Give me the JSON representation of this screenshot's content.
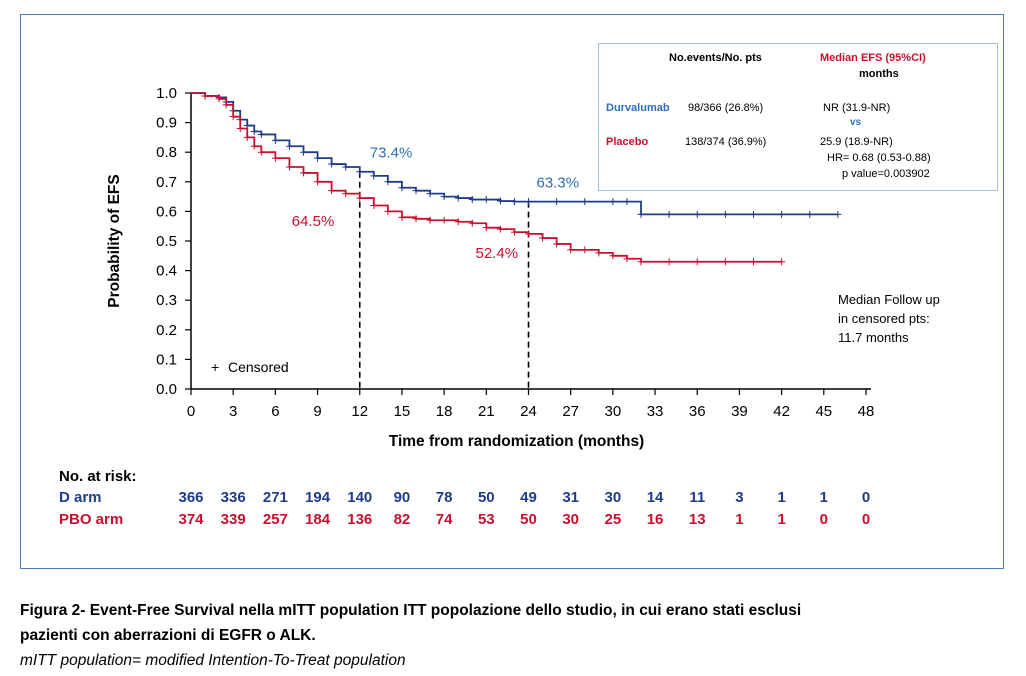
{
  "chart_data": {
    "type": "line",
    "xlabel": "Time from randomization (months)",
    "ylabel": "Probability of EFS",
    "xlim": [
      0,
      48
    ],
    "ylim": [
      0.0,
      1.0
    ],
    "xticks": [
      "0",
      "3",
      "6",
      "9",
      "12",
      "15",
      "18",
      "21",
      "24",
      "27",
      "30",
      "33",
      "36",
      "39",
      "42",
      "45",
      "48"
    ],
    "yticks": [
      "0.0",
      "0.1",
      "0.2",
      "0.3",
      "0.4",
      "0.5",
      "0.6",
      "0.7",
      "0.8",
      "0.9",
      "1.0"
    ],
    "grid": false,
    "series": [
      {
        "name": "Durvalumab",
        "color": "#1f3c88",
        "x": [
          0,
          1,
          2,
          2.5,
          3,
          3.5,
          4,
          4.5,
          5,
          6,
          7,
          8,
          9,
          10,
          11,
          12,
          13,
          14,
          15,
          16,
          17,
          18,
          19,
          20,
          21,
          22,
          23,
          24,
          26,
          28,
          30,
          31,
          32,
          34,
          36,
          38,
          40,
          42,
          44,
          46
        ],
        "y": [
          1.0,
          0.99,
          0.985,
          0.97,
          0.94,
          0.91,
          0.89,
          0.87,
          0.86,
          0.84,
          0.82,
          0.8,
          0.78,
          0.76,
          0.75,
          0.734,
          0.72,
          0.7,
          0.68,
          0.67,
          0.66,
          0.65,
          0.645,
          0.64,
          0.64,
          0.635,
          0.633,
          0.633,
          0.633,
          0.633,
          0.633,
          0.633,
          0.59,
          0.59,
          0.59,
          0.59,
          0.59,
          0.59,
          0.59,
          0.59
        ]
      },
      {
        "name": "Placebo",
        "color": "#c8102e",
        "x": [
          0,
          1,
          2,
          2.5,
          3,
          3.5,
          4,
          4.5,
          5,
          6,
          7,
          8,
          9,
          10,
          11,
          12,
          13,
          14,
          15,
          16,
          17,
          18,
          19,
          20,
          21,
          22,
          23,
          24,
          25,
          26,
          27,
          28,
          29,
          30,
          31,
          32,
          34,
          36,
          38,
          40,
          42
        ],
        "y": [
          1.0,
          0.99,
          0.98,
          0.96,
          0.92,
          0.88,
          0.85,
          0.82,
          0.8,
          0.78,
          0.75,
          0.73,
          0.7,
          0.67,
          0.66,
          0.645,
          0.62,
          0.6,
          0.58,
          0.575,
          0.57,
          0.57,
          0.565,
          0.56,
          0.545,
          0.54,
          0.53,
          0.524,
          0.51,
          0.49,
          0.47,
          0.47,
          0.46,
          0.45,
          0.44,
          0.43,
          0.43,
          0.43,
          0.43,
          0.43,
          0.43
        ]
      }
    ],
    "annotations": [
      {
        "text": "73.4%",
        "series": "Durvalumab",
        "x": 12,
        "y": 0.734
      },
      {
        "text": "64.5%",
        "series": "Placebo",
        "x": 12,
        "y": 0.645
      },
      {
        "text": "63.3%",
        "series": "Durvalumab",
        "x": 24,
        "y": 0.633
      },
      {
        "text": "52.4%",
        "series": "Placebo",
        "x": 24,
        "y": 0.524
      }
    ],
    "reference_lines_x": [
      12,
      24
    ],
    "censored_label": "Censored",
    "censored_marker": "+",
    "risk_table": {
      "title": "No. at risk:",
      "rows": [
        {
          "label": "D arm",
          "color": "#1f3c88",
          "values": [
            366,
            336,
            271,
            194,
            140,
            90,
            78,
            50,
            49,
            31,
            30,
            14,
            11,
            3,
            1,
            1,
            0
          ]
        },
        {
          "label": "PBO arm",
          "color": "#c8102e",
          "values": [
            374,
            339,
            257,
            184,
            136,
            82,
            74,
            53,
            50,
            30,
            25,
            16,
            13,
            1,
            1,
            0,
            0
          ]
        }
      ]
    }
  },
  "legend_table": {
    "col1_header": "No.events/No. pts",
    "col2_header_line1": "Median EFS (95%CI)",
    "col2_header_line2": "months",
    "row1_name": "Durvalumab",
    "row1_events": "98/366 (26.8%)",
    "row1_median": "NR (31.9-NR)",
    "vs": "vs",
    "row2_name": "Placebo",
    "row2_events": "138/374 (36.9%)",
    "row2_median": "25.9 (18.9-NR)",
    "hr": "HR= 0.68 (0.53-0.88)",
    "pvalue": "p value=0.003902"
  },
  "followup": {
    "line1": "Median Follow up",
    "line2": "in censored pts:",
    "line3": "11.7 months"
  },
  "caption": {
    "line1": "Figura 2- Event-Free Survival nella mITT population ITT popolazione dello studio,  in cui erano stati esclusi",
    "line2": "pazienti con aberrazioni di EGFR o ALK.",
    "line3": "mITT population= modified Intention-To-Treat population"
  }
}
